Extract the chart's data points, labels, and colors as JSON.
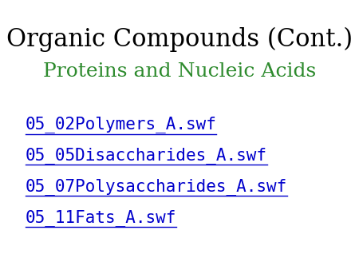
{
  "title": "Organic Compounds (Cont.)",
  "subtitle": "Proteins and Nucleic Acids",
  "title_color": "#000000",
  "subtitle_color": "#2e8b2e",
  "links": [
    "05_02Polymers_A.swf",
    "05_05Disaccharides_A.swf",
    "05_07Polysaccharides_A.swf",
    "05_11Fats_A.swf"
  ],
  "link_color": "#0000cc",
  "background_color": "#ffffff",
  "title_fontsize": 22,
  "subtitle_fontsize": 18,
  "link_fontsize": 15
}
